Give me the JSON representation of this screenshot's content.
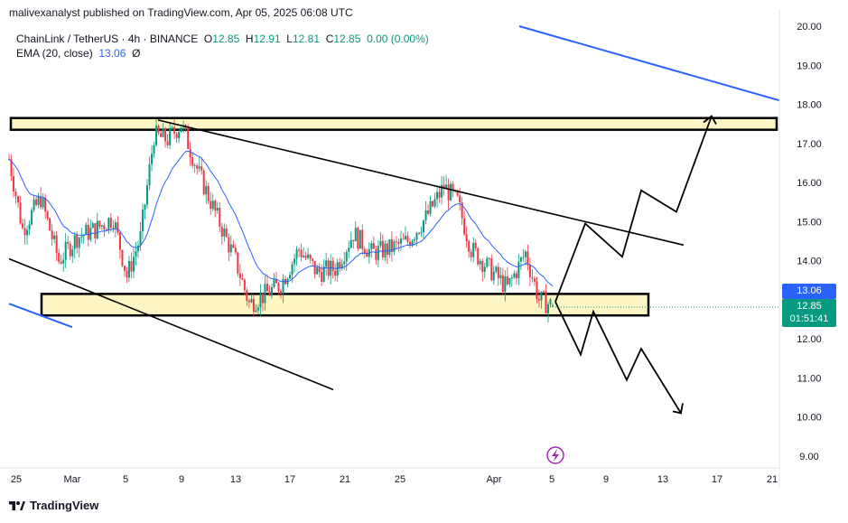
{
  "header": {
    "publisher_text": "malivexanalyst published on TradingView.com, Apr 05, 2025 06:08 UTC"
  },
  "legend": {
    "symbol": "ChainLink / TetherUS · 4h · BINANCE",
    "open_label": "O",
    "open": "12.85",
    "high_label": "H",
    "high": "12.91",
    "low_label": "L",
    "low": "12.81",
    "close_label": "C",
    "close": "12.85",
    "change": "0.00 (0.00%)",
    "ema_label": "EMA (20, close)",
    "ema_value": "13.06",
    "ema_extra": "Ø"
  },
  "price_tags": {
    "ema": "13.06",
    "last_price": "12.85",
    "countdown": "01:51:41"
  },
  "branding": {
    "name": "TradingView"
  },
  "colors": {
    "up": "#089981",
    "down": "#f23645",
    "ema": "#2962ff",
    "zone_fill": "#fdf5c4",
    "zone_border": "#000000",
    "trendline": "#000000",
    "blue_trendline": "#2962ff"
  },
  "chart_data": {
    "type": "candlestick",
    "interval": "4h",
    "symbol": "LINK/USDT",
    "y_axis": {
      "range": [
        9.0,
        20.0
      ],
      "ticks": [
        "20.00",
        "19.00",
        "18.00",
        "17.00",
        "16.00",
        "15.00",
        "14.00",
        "13.00",
        "12.00",
        "11.00",
        "10.00",
        "9.00"
      ]
    },
    "x_axis": {
      "ticks": [
        "25",
        "Mar",
        "5",
        "9",
        "13",
        "17",
        "21",
        "25",
        "Apr",
        "5",
        "9",
        "13",
        "17",
        "21"
      ]
    },
    "ohlc_last": {
      "open": 12.85,
      "high": 12.91,
      "low": 12.81,
      "close": 12.85
    },
    "ema_period": 20,
    "ema_last": 13.06,
    "resistance_zone": [
      17.35,
      17.65
    ],
    "support_zone": [
      12.6,
      13.15
    ],
    "price_path_anchors": [
      {
        "pos": 0,
        "price": 16.6
      },
      {
        "pos": 6,
        "price": 14.8
      },
      {
        "pos": 14,
        "price": 15.6
      },
      {
        "pos": 22,
        "price": 14.0
      },
      {
        "pos": 30,
        "price": 14.6
      },
      {
        "pos": 38,
        "price": 14.8
      },
      {
        "pos": 46,
        "price": 15.1
      },
      {
        "pos": 52,
        "price": 13.6
      },
      {
        "pos": 58,
        "price": 14.6
      },
      {
        "pos": 64,
        "price": 17.2
      },
      {
        "pos": 70,
        "price": 17.1
      },
      {
        "pos": 76,
        "price": 17.5
      },
      {
        "pos": 84,
        "price": 16.2
      },
      {
        "pos": 92,
        "price": 15.1
      },
      {
        "pos": 100,
        "price": 14.0
      },
      {
        "pos": 106,
        "price": 12.9
      },
      {
        "pos": 112,
        "price": 13.1
      },
      {
        "pos": 120,
        "price": 13.4
      },
      {
        "pos": 128,
        "price": 14.3
      },
      {
        "pos": 136,
        "price": 13.7
      },
      {
        "pos": 144,
        "price": 13.8
      },
      {
        "pos": 152,
        "price": 14.7
      },
      {
        "pos": 160,
        "price": 14.2
      },
      {
        "pos": 168,
        "price": 14.3
      },
      {
        "pos": 176,
        "price": 14.5
      },
      {
        "pos": 184,
        "price": 15.1
      },
      {
        "pos": 192,
        "price": 15.9
      },
      {
        "pos": 198,
        "price": 15.5
      },
      {
        "pos": 204,
        "price": 14.3
      },
      {
        "pos": 212,
        "price": 13.8
      },
      {
        "pos": 220,
        "price": 13.3
      },
      {
        "pos": 228,
        "price": 14.2
      },
      {
        "pos": 234,
        "price": 13.0
      },
      {
        "pos": 240,
        "price": 12.85
      }
    ],
    "trendlines": [
      {
        "name": "upper-channel",
        "from": {
          "date": "Mar 7",
          "price": 17.6
        },
        "to": {
          "date": "Apr 14",
          "price": 14.4
        }
      },
      {
        "name": "lower-channel",
        "from": {
          "date": "Feb 25",
          "price": 14.05
        },
        "to": {
          "date": "Mar 20",
          "price": 10.7
        }
      },
      {
        "name": "upper-blue",
        "from": {
          "date": "Mar 22",
          "price": 20.0
        },
        "to": {
          "date": "Apr 21",
          "price": 18.1
        }
      },
      {
        "name": "lower-blue",
        "from": {
          "date": "Feb 25",
          "price": 12.9
        },
        "to": {
          "date": "Feb 28",
          "price": 12.3
        }
      }
    ],
    "scenario_up": [
      12.95,
      14.95,
      14.1,
      15.8,
      15.25,
      17.7
    ],
    "scenario_down": [
      12.95,
      11.6,
      12.7,
      10.95,
      11.75,
      10.1
    ]
  }
}
